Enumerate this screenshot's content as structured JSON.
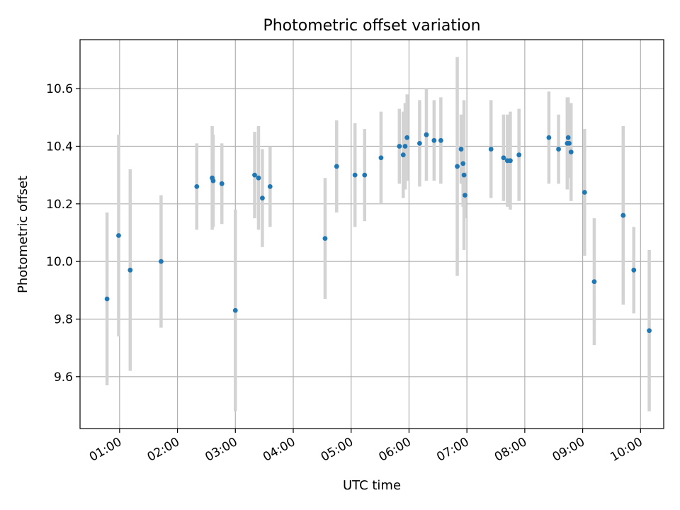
{
  "chart_data": {
    "type": "scatter",
    "title": "Photometric offset variation",
    "xlabel": "UTC time",
    "ylabel": "Photometric offset",
    "x_ticks": [
      "01:00",
      "02:00",
      "03:00",
      "04:00",
      "05:00",
      "06:00",
      "07:00",
      "08:00",
      "09:00",
      "10:00"
    ],
    "y_ticks": [
      "9.6",
      "9.8",
      "10.0",
      "10.2",
      "10.4",
      "10.6"
    ],
    "xlim": [
      "00:19",
      "10:24"
    ],
    "ylim": [
      9.42,
      10.77
    ],
    "grid": true,
    "legend": "none",
    "colors": {
      "marker": "#1f77b4",
      "errorbar": "#d3d3d3",
      "grid": "#b0b0b0"
    },
    "points": [
      {
        "x": "00:47",
        "y": 9.87,
        "err": 0.3
      },
      {
        "x": "00:59",
        "y": 10.09,
        "err": 0.35
      },
      {
        "x": "01:11",
        "y": 9.97,
        "err": 0.35
      },
      {
        "x": "01:43",
        "y": 10.0,
        "err": 0.23
      },
      {
        "x": "02:20",
        "y": 10.26,
        "err": 0.15
      },
      {
        "x": "02:36",
        "y": 10.29,
        "err": 0.18
      },
      {
        "x": "02:37",
        "y": 10.28,
        "err": 0.16
      },
      {
        "x": "02:46",
        "y": 10.27,
        "err": 0.14
      },
      {
        "x": "03:00",
        "y": 9.83,
        "err": 0.35
      },
      {
        "x": "03:20",
        "y": 10.3,
        "err": 0.15
      },
      {
        "x": "03:24",
        "y": 10.29,
        "err": 0.18
      },
      {
        "x": "03:28",
        "y": 10.22,
        "err": 0.17
      },
      {
        "x": "03:36",
        "y": 10.26,
        "err": 0.14
      },
      {
        "x": "04:33",
        "y": 10.08,
        "err": 0.21
      },
      {
        "x": "04:45",
        "y": 10.33,
        "err": 0.16
      },
      {
        "x": "05:04",
        "y": 10.3,
        "err": 0.18
      },
      {
        "x": "05:14",
        "y": 10.3,
        "err": 0.16
      },
      {
        "x": "05:31",
        "y": 10.36,
        "err": 0.16
      },
      {
        "x": "05:50",
        "y": 10.4,
        "err": 0.13
      },
      {
        "x": "05:54",
        "y": 10.37,
        "err": 0.15
      },
      {
        "x": "05:56",
        "y": 10.4,
        "err": 0.15
      },
      {
        "x": "05:58",
        "y": 10.43,
        "err": 0.15
      },
      {
        "x": "06:11",
        "y": 10.41,
        "err": 0.15
      },
      {
        "x": "06:18",
        "y": 10.44,
        "err": 0.16
      },
      {
        "x": "06:26",
        "y": 10.42,
        "err": 0.14
      },
      {
        "x": "06:33",
        "y": 10.42,
        "err": 0.15
      },
      {
        "x": "06:50",
        "y": 10.33,
        "err": 0.38
      },
      {
        "x": "06:54",
        "y": 10.39,
        "err": 0.12
      },
      {
        "x": "06:56",
        "y": 10.34,
        "err": 0.15
      },
      {
        "x": "06:57",
        "y": 10.3,
        "err": 0.26
      },
      {
        "x": "06:58",
        "y": 10.23,
        "err": 0.08
      },
      {
        "x": "07:25",
        "y": 10.39,
        "err": 0.17
      },
      {
        "x": "07:38",
        "y": 10.36,
        "err": 0.15
      },
      {
        "x": "07:42",
        "y": 10.35,
        "err": 0.16
      },
      {
        "x": "07:45",
        "y": 10.35,
        "err": 0.17
      },
      {
        "x": "07:54",
        "y": 10.37,
        "err": 0.16
      },
      {
        "x": "08:25",
        "y": 10.43,
        "err": 0.16
      },
      {
        "x": "08:35",
        "y": 10.39,
        "err": 0.12
      },
      {
        "x": "08:44",
        "y": 10.41,
        "err": 0.16
      },
      {
        "x": "08:45",
        "y": 10.43,
        "err": 0.14
      },
      {
        "x": "08:46",
        "y": 10.41,
        "err": 0.12
      },
      {
        "x": "08:48",
        "y": 10.38,
        "err": 0.17
      },
      {
        "x": "09:02",
        "y": 10.24,
        "err": 0.22
      },
      {
        "x": "09:12",
        "y": 9.93,
        "err": 0.22
      },
      {
        "x": "09:42",
        "y": 10.16,
        "err": 0.31
      },
      {
        "x": "09:53",
        "y": 9.97,
        "err": 0.15
      },
      {
        "x": "10:09",
        "y": 9.76,
        "err": 0.28
      }
    ]
  }
}
